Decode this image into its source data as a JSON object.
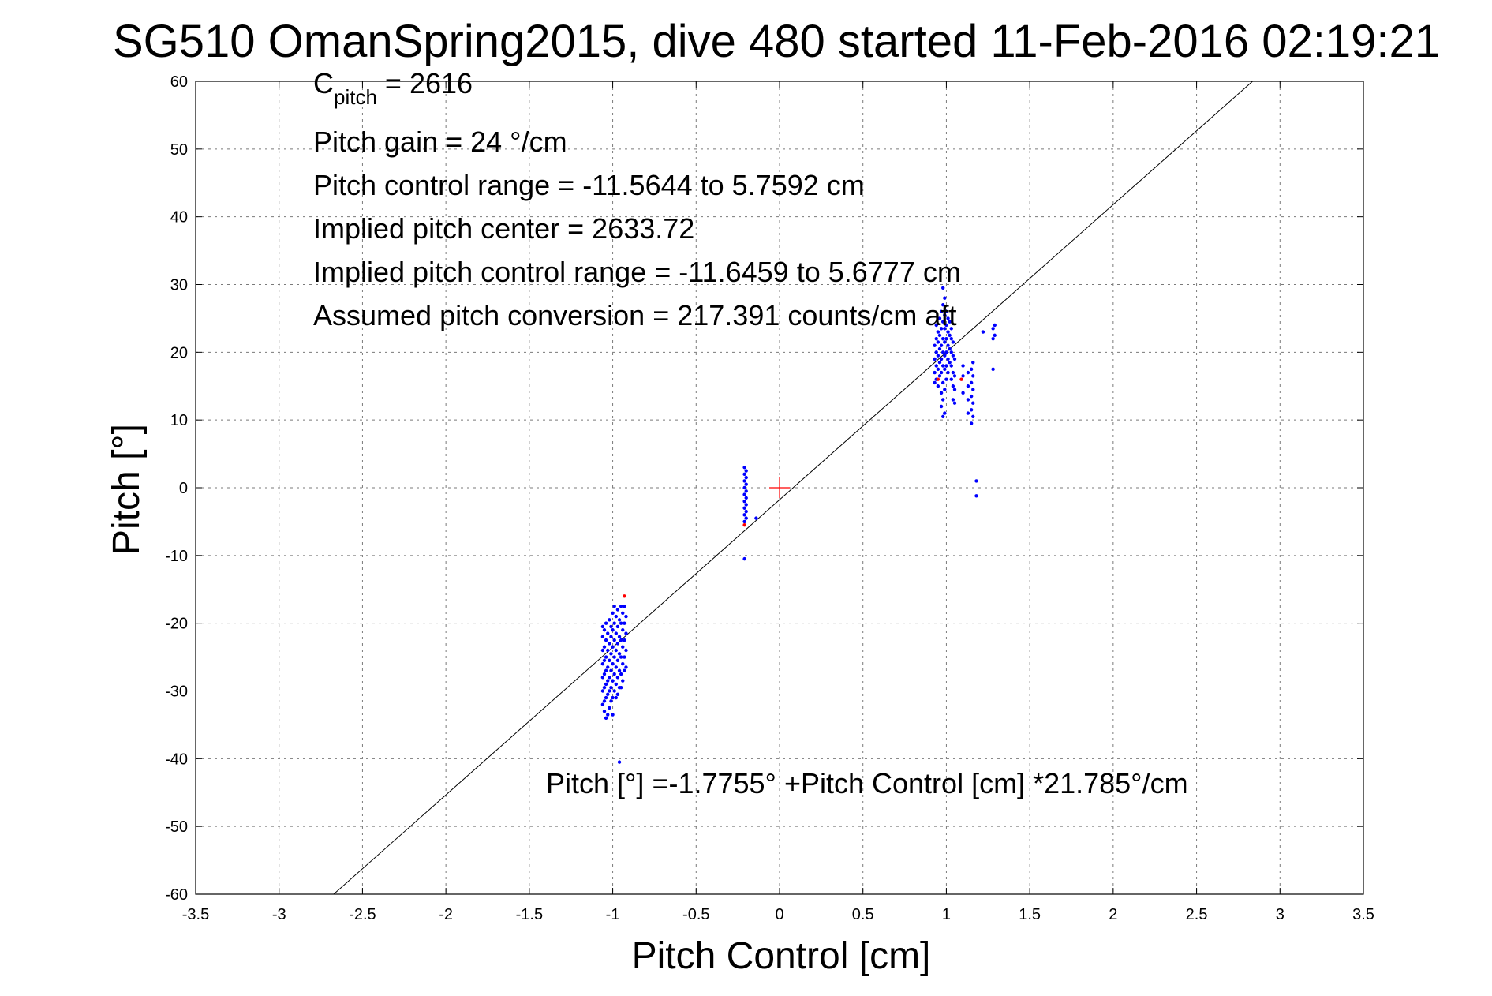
{
  "chart_data": {
    "type": "scatter",
    "title": "SG510 OmanSpring2015, dive 480 started 11-Feb-2016 02:19:21",
    "xlabel": "Pitch Control [cm]",
    "ylabel": "Pitch [°]",
    "xlim": [
      -3.5,
      3.5
    ],
    "ylim": [
      -60,
      60
    ],
    "xticks": [
      -3.5,
      -3,
      -2.5,
      -2,
      -1.5,
      -1,
      -0.5,
      0,
      0.5,
      1,
      1.5,
      2,
      2.5,
      3,
      3.5
    ],
    "xtick_labels": [
      "-3.5",
      "-3",
      "-2.5",
      "-2",
      "-1.5",
      "-1",
      "-0.5",
      "0",
      "0.5",
      "1",
      "1.5",
      "2",
      "2.5",
      "3",
      "3.5"
    ],
    "yticks": [
      -60,
      -50,
      -40,
      -30,
      -20,
      -10,
      0,
      10,
      20,
      30,
      40,
      50,
      60
    ],
    "ytick_labels": [
      "-60",
      "-50",
      "-40",
      "-30",
      "-20",
      "-10",
      "0",
      "10",
      "20",
      "30",
      "40",
      "50",
      "60"
    ],
    "grid": true,
    "annotations": {
      "c_pitch_main": "C",
      "c_pitch_sub": "pitch",
      "c_pitch_value": " = 2616",
      "pitch_gain": "Pitch gain = 24 °/cm",
      "pitch_control_range": "Pitch control range = -11.5644 to 5.7592 cm",
      "implied_center": "Implied pitch center = 2633.72",
      "implied_range": "Implied pitch control range = -11.6459 to 5.6777 cm",
      "assumed_conversion": "Assumed pitch conversion = 217.391 counts/cm aft",
      "fit_equation": "Pitch [°] =-1.7755° +Pitch Control [cm] *21.785°/cm"
    },
    "fit_line": {
      "intercept": -1.7755,
      "slope": 21.785
    },
    "center_marker": {
      "x": 0,
      "y": 0
    },
    "series": [
      {
        "color": "#0000ff",
        "points": [
          [
            -1.06,
            -20.5
          ],
          [
            -1.06,
            -22
          ],
          [
            -1.06,
            -24
          ],
          [
            -1.06,
            -26
          ],
          [
            -1.06,
            -28
          ],
          [
            -1.06,
            -30
          ],
          [
            -1.06,
            -32
          ],
          [
            -1.05,
            -21
          ],
          [
            -1.05,
            -23.5
          ],
          [
            -1.05,
            -25.5
          ],
          [
            -1.05,
            -27.5
          ],
          [
            -1.05,
            -29.5
          ],
          [
            -1.05,
            -31.5
          ],
          [
            -1.05,
            -33
          ],
          [
            -1.04,
            -20
          ],
          [
            -1.04,
            -22.5
          ],
          [
            -1.04,
            -25
          ],
          [
            -1.04,
            -27
          ],
          [
            -1.04,
            -29
          ],
          [
            -1.04,
            -31
          ],
          [
            -1.04,
            -34
          ],
          [
            -1.03,
            -21.5
          ],
          [
            -1.03,
            -24
          ],
          [
            -1.03,
            -26.5
          ],
          [
            -1.03,
            -28.5
          ],
          [
            -1.03,
            -30.5
          ],
          [
            -1.03,
            -33.5
          ],
          [
            -1.02,
            -19.5
          ],
          [
            -1.02,
            -23
          ],
          [
            -1.02,
            -25.5
          ],
          [
            -1.02,
            -28
          ],
          [
            -1.02,
            -30
          ],
          [
            -1.02,
            -32.5
          ],
          [
            -1.01,
            -20.5
          ],
          [
            -1.01,
            -22
          ],
          [
            -1.01,
            -24.5
          ],
          [
            -1.01,
            -27
          ],
          [
            -1.01,
            -29.5
          ],
          [
            -1.01,
            -31.5
          ],
          [
            -1.0,
            -18.5
          ],
          [
            -1.0,
            -21
          ],
          [
            -1.0,
            -23.5
          ],
          [
            -1.0,
            -26
          ],
          [
            -1.0,
            -28.5
          ],
          [
            -1.0,
            -31
          ],
          [
            -1.0,
            -33.5
          ],
          [
            -0.99,
            -17.5
          ],
          [
            -0.99,
            -20
          ],
          [
            -0.99,
            -22.5
          ],
          [
            -0.99,
            -25
          ],
          [
            -0.99,
            -27.5
          ],
          [
            -0.99,
            -30
          ],
          [
            -0.98,
            -19
          ],
          [
            -0.98,
            -21.5
          ],
          [
            -0.98,
            -24
          ],
          [
            -0.98,
            -26.5
          ],
          [
            -0.98,
            -29
          ],
          [
            -0.98,
            -31
          ],
          [
            -0.97,
            -18
          ],
          [
            -0.97,
            -20.5
          ],
          [
            -0.97,
            -23
          ],
          [
            -0.97,
            -25.5
          ],
          [
            -0.97,
            -28
          ],
          [
            -0.97,
            -30.5
          ],
          [
            -0.96,
            -19.5
          ],
          [
            -0.96,
            -22
          ],
          [
            -0.96,
            -24.5
          ],
          [
            -0.96,
            -27
          ],
          [
            -0.96,
            -29.5
          ],
          [
            -0.96,
            -40.5
          ],
          [
            -0.95,
            -17.5
          ],
          [
            -0.95,
            -20
          ],
          [
            -0.95,
            -22.5
          ],
          [
            -0.95,
            -25
          ],
          [
            -0.95,
            -27.5
          ],
          [
            -0.95,
            -29.5
          ],
          [
            -0.94,
            -18.5
          ],
          [
            -0.94,
            -21
          ],
          [
            -0.94,
            -23.5
          ],
          [
            -0.94,
            -26
          ],
          [
            -0.94,
            -28.5
          ],
          [
            -0.93,
            -17.5
          ],
          [
            -0.93,
            -20
          ],
          [
            -0.93,
            -22.5
          ],
          [
            -0.93,
            -25
          ],
          [
            -0.93,
            -27
          ],
          [
            -0.92,
            -19
          ],
          [
            -0.92,
            -21.5
          ],
          [
            -0.92,
            -24
          ],
          [
            -0.92,
            -26.5
          ],
          [
            -0.21,
            3
          ],
          [
            -0.21,
            2
          ],
          [
            -0.21,
            1
          ],
          [
            -0.21,
            0
          ],
          [
            -0.21,
            -1
          ],
          [
            -0.21,
            -2
          ],
          [
            -0.21,
            -3
          ],
          [
            -0.21,
            -4
          ],
          [
            -0.21,
            -5
          ],
          [
            -0.21,
            -10.5
          ],
          [
            -0.2,
            2.5
          ],
          [
            -0.2,
            1.5
          ],
          [
            -0.2,
            0.5
          ],
          [
            -0.2,
            -0.5
          ],
          [
            -0.2,
            -1.5
          ],
          [
            -0.2,
            -2.5
          ],
          [
            -0.2,
            -3.5
          ],
          [
            -0.2,
            -4.5
          ],
          [
            -0.14,
            -4.5
          ],
          [
            0.93,
            15.5
          ],
          [
            0.93,
            17
          ],
          [
            0.93,
            19
          ],
          [
            0.93,
            21
          ],
          [
            0.94,
            16
          ],
          [
            0.94,
            18
          ],
          [
            0.94,
            20
          ],
          [
            0.94,
            22
          ],
          [
            0.94,
            24
          ],
          [
            0.95,
            15
          ],
          [
            0.95,
            17.5
          ],
          [
            0.95,
            19.5
          ],
          [
            0.95,
            21.5
          ],
          [
            0.95,
            23
          ],
          [
            0.96,
            16.5
          ],
          [
            0.96,
            18.5
          ],
          [
            0.96,
            20.5
          ],
          [
            0.96,
            22.5
          ],
          [
            0.96,
            25
          ],
          [
            0.97,
            12
          ],
          [
            0.97,
            14
          ],
          [
            0.97,
            17
          ],
          [
            0.97,
            19
          ],
          [
            0.97,
            21
          ],
          [
            0.97,
            23.5
          ],
          [
            0.97,
            26
          ],
          [
            0.98,
            10.5
          ],
          [
            0.98,
            13
          ],
          [
            0.98,
            15.5
          ],
          [
            0.98,
            18
          ],
          [
            0.98,
            20
          ],
          [
            0.98,
            22
          ],
          [
            0.98,
            24.5
          ],
          [
            0.98,
            27
          ],
          [
            0.98,
            29.5
          ],
          [
            0.99,
            11
          ],
          [
            0.99,
            14.5
          ],
          [
            0.99,
            17.5
          ],
          [
            0.99,
            19.5
          ],
          [
            0.99,
            21.5
          ],
          [
            0.99,
            23.5
          ],
          [
            0.99,
            25.5
          ],
          [
            0.99,
            28
          ],
          [
            1.0,
            16
          ],
          [
            1.0,
            18
          ],
          [
            1.0,
            20
          ],
          [
            1.0,
            22
          ],
          [
            1.0,
            24
          ],
          [
            1.0,
            26
          ],
          [
            1.01,
            17
          ],
          [
            1.01,
            19
          ],
          [
            1.01,
            21
          ],
          [
            1.01,
            23
          ],
          [
            1.01,
            25
          ],
          [
            1.02,
            18.5
          ],
          [
            1.02,
            20.5
          ],
          [
            1.02,
            22.5
          ],
          [
            1.02,
            24.5
          ],
          [
            1.03,
            16
          ],
          [
            1.03,
            18
          ],
          [
            1.03,
            20
          ],
          [
            1.03,
            22
          ],
          [
            1.03,
            23.5
          ],
          [
            1.04,
            13
          ],
          [
            1.04,
            15
          ],
          [
            1.04,
            17
          ],
          [
            1.04,
            19.5
          ],
          [
            1.04,
            21.5
          ],
          [
            1.05,
            12.5
          ],
          [
            1.05,
            14.5
          ],
          [
            1.05,
            16.5
          ],
          [
            1.05,
            19
          ],
          [
            1.1,
            14
          ],
          [
            1.1,
            16.5
          ],
          [
            1.1,
            18
          ],
          [
            1.13,
            11
          ],
          [
            1.13,
            13
          ],
          [
            1.13,
            15
          ],
          [
            1.13,
            17
          ],
          [
            1.15,
            9.5
          ],
          [
            1.15,
            11.5
          ],
          [
            1.15,
            13.5
          ],
          [
            1.15,
            15.5
          ],
          [
            1.15,
            17.5
          ],
          [
            1.16,
            10.5
          ],
          [
            1.16,
            12.5
          ],
          [
            1.16,
            14.5
          ],
          [
            1.16,
            16.5
          ],
          [
            1.16,
            18.5
          ],
          [
            1.18,
            1
          ],
          [
            1.18,
            -1.2
          ],
          [
            1.22,
            23
          ],
          [
            1.28,
            22
          ],
          [
            1.28,
            23.5
          ],
          [
            1.28,
            17.5
          ],
          [
            1.29,
            22.5
          ],
          [
            1.29,
            24
          ]
        ]
      },
      {
        "color": "#ff0000",
        "points": [
          [
            -0.93,
            -16
          ],
          [
            -0.21,
            -5.5
          ],
          [
            0.95,
            16
          ],
          [
            1.09,
            16
          ]
        ]
      }
    ]
  }
}
